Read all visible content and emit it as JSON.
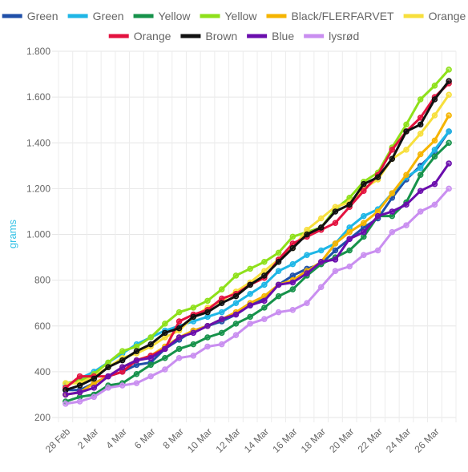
{
  "chart_data": {
    "type": "line",
    "ylabel": "grams",
    "ylabel_color": "#36c2e6",
    "ylim": [
      200,
      1800
    ],
    "yticks": [
      200,
      400,
      600,
      800,
      1000,
      1200,
      1400,
      1600,
      1800
    ],
    "ytick_labels": [
      "200",
      "400",
      "600",
      "800",
      "1.000",
      "1.200",
      "1.400",
      "1.600",
      "1.800"
    ],
    "grid": true,
    "legend_position": "top",
    "x": [
      "28 Feb",
      "1 Mar",
      "2 Mar",
      "3 Mar",
      "4 Mar",
      "5 Mar",
      "6 Mar",
      "7 Mar",
      "8 Mar",
      "9 Mar",
      "10 Mar",
      "11 Mar",
      "12 Mar",
      "13 Mar",
      "14 Mar",
      "15 Mar",
      "16 Mar",
      "17 Mar",
      "18 Mar",
      "19 Mar",
      "20 Mar",
      "21 Mar",
      "22 Mar",
      "23 Mar",
      "24 Mar",
      "25 Mar",
      "26 Mar",
      "27 Mar"
    ],
    "xtick_labels": [
      "28 Feb",
      "2 Mar",
      "4 Mar",
      "6 Mar",
      "8 Mar",
      "10 Mar",
      "12 Mar",
      "14 Mar",
      "16 Mar",
      "18 Mar",
      "20 Mar",
      "22 Mar",
      "24 Mar",
      "26 Mar"
    ],
    "series": [
      {
        "name": "Green",
        "color": "#1f4fa8",
        "values": [
          320,
          320,
          350,
          380,
          400,
          430,
          440,
          500,
          540,
          580,
          600,
          620,
          650,
          690,
          720,
          780,
          820,
          850,
          870,
          930,
          980,
          1030,
          1070,
          1160,
          1240,
          1300,
          1360,
          1450
        ]
      },
      {
        "name": "Green",
        "color": "#1eb6e6",
        "values": [
          340,
          370,
          400,
          440,
          480,
          520,
          550,
          580,
          600,
          620,
          640,
          660,
          700,
          740,
          780,
          840,
          870,
          910,
          930,
          960,
          1030,
          1080,
          1110,
          1180,
          1250,
          1290,
          1370,
          1450
        ]
      },
      {
        "name": "Yellow",
        "color": "#16924a",
        "values": [
          270,
          290,
          300,
          340,
          350,
          390,
          430,
          460,
          500,
          520,
          550,
          570,
          610,
          640,
          680,
          730,
          760,
          820,
          870,
          900,
          930,
          990,
          1080,
          1080,
          1140,
          1260,
          1340,
          1400
        ]
      },
      {
        "name": "Yellow",
        "color": "#8ee01a",
        "values": [
          350,
          360,
          390,
          440,
          490,
          510,
          550,
          610,
          660,
          680,
          710,
          760,
          820,
          850,
          880,
          920,
          990,
          1010,
          1030,
          1110,
          1160,
          1230,
          1270,
          1380,
          1480,
          1590,
          1650,
          1720
        ]
      },
      {
        "name": "Black/FLERFARVET",
        "color": "#f5b400",
        "values": [
          300,
          310,
          350,
          380,
          420,
          450,
          470,
          510,
          550,
          580,
          600,
          630,
          660,
          700,
          730,
          780,
          800,
          840,
          880,
          960,
          1010,
          1050,
          1100,
          1180,
          1260,
          1350,
          1410,
          1520
        ]
      },
      {
        "name": "Orange",
        "color": "#f7df3c",
        "values": [
          350,
          350,
          380,
          420,
          460,
          480,
          510,
          550,
          580,
          640,
          680,
          710,
          750,
          790,
          840,
          890,
          940,
          1020,
          1070,
          1120,
          1140,
          1200,
          1240,
          1330,
          1370,
          1440,
          1520,
          1610
        ]
      },
      {
        "name": "Orange",
        "color": "#e3123f",
        "values": [
          330,
          380,
          380,
          380,
          400,
          450,
          470,
          500,
          620,
          650,
          670,
          720,
          740,
          780,
          810,
          890,
          960,
          990,
          1020,
          1050,
          1120,
          1190,
          1260,
          1370,
          1450,
          1510,
          1600,
          1660
        ]
      },
      {
        "name": "Brown",
        "color": "#111111",
        "values": [
          320,
          340,
          370,
          420,
          450,
          490,
          520,
          570,
          590,
          640,
          660,
          700,
          730,
          780,
          820,
          880,
          940,
          1000,
          1030,
          1100,
          1130,
          1220,
          1250,
          1330,
          1450,
          1480,
          1590,
          1670
        ]
      },
      {
        "name": "Blue",
        "color": "#6a0dad",
        "values": [
          300,
          310,
          330,
          380,
          420,
          450,
          460,
          500,
          550,
          570,
          600,
          630,
          650,
          690,
          710,
          780,
          790,
          830,
          880,
          890,
          980,
          1010,
          1080,
          1100,
          1130,
          1190,
          1220,
          1310
        ]
      },
      {
        "name": "lysrød",
        "color": "#c98ef0",
        "values": [
          260,
          270,
          290,
          330,
          340,
          350,
          380,
          410,
          460,
          470,
          510,
          520,
          560,
          610,
          630,
          660,
          670,
          700,
          770,
          840,
          860,
          910,
          930,
          1010,
          1040,
          1100,
          1130,
          1200
        ]
      }
    ]
  }
}
